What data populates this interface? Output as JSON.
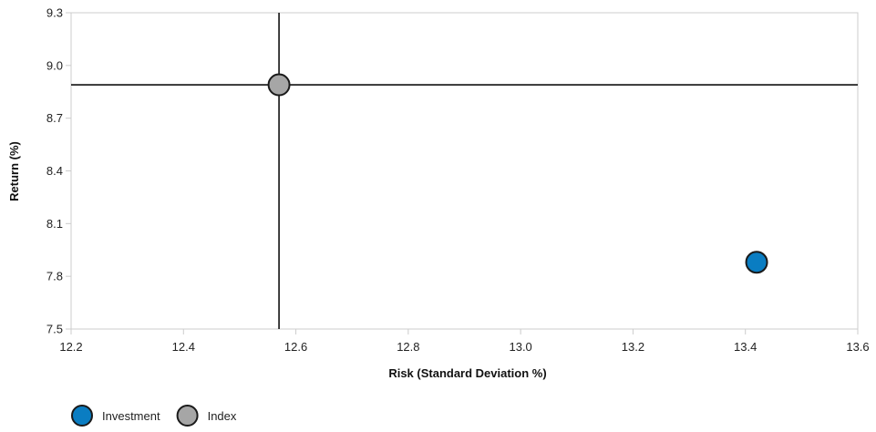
{
  "chart_data": {
    "type": "scatter",
    "xlabel": "Risk (Standard Deviation %)",
    "ylabel": "Return (%)",
    "xlim": [
      12.2,
      13.6
    ],
    "ylim": [
      7.5,
      9.3
    ],
    "xticks": [
      "12.2",
      "12.4",
      "12.6",
      "12.8",
      "13.0",
      "13.2",
      "13.4",
      "13.6"
    ],
    "yticks": [
      "7.5",
      "7.8",
      "8.1",
      "8.4",
      "8.7",
      "9.0",
      "9.3"
    ],
    "grid": false,
    "legend_position": "bottom-left",
    "series": [
      {
        "name": "Investment",
        "color": "#0a7dc2",
        "points": [
          {
            "x": 13.42,
            "y": 7.88
          }
        ]
      },
      {
        "name": "Index",
        "color": "#a6a6a6",
        "points": [
          {
            "x": 12.57,
            "y": 8.89
          }
        ]
      }
    ],
    "reference_lines": {
      "x": 12.57,
      "y": 8.89
    }
  }
}
